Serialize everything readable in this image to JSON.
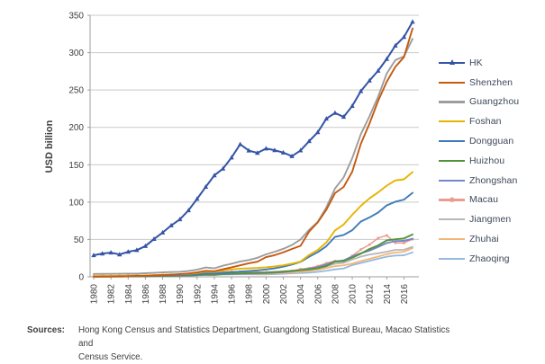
{
  "sources": {
    "label": "Sources:",
    "lines": [
      "Hong Kong Census and Statistics Department, Guangdong Statistical Bureau, Macao Statistics and",
      "Census Service."
    ]
  },
  "chart_data": {
    "type": "line",
    "title": "",
    "xlabel": "",
    "ylabel": "USD billion",
    "ylim": [
      0,
      350
    ],
    "yticks": [
      0,
      50,
      100,
      150,
      200,
      250,
      300,
      350
    ],
    "grid": "horizontal",
    "legend_position": "right",
    "style": {
      "grid_color": "#c9c9c9",
      "axis_color": "#9e9e9e",
      "tick_text_color": "#404040",
      "legend_text_color": "#3c4859"
    },
    "x": [
      1980,
      1981,
      1982,
      1983,
      1984,
      1985,
      1986,
      1987,
      1988,
      1989,
      1990,
      1991,
      1992,
      1993,
      1994,
      1995,
      1996,
      1997,
      1998,
      1999,
      2000,
      2001,
      2002,
      2003,
      2004,
      2005,
      2006,
      2007,
      2008,
      2009,
      2010,
      2011,
      2012,
      2013,
      2014,
      2015,
      2016,
      2017
    ],
    "xtick_labels": [
      "1980",
      "1982",
      "1984",
      "1986",
      "1988",
      "1990",
      "1992",
      "1994",
      "1996",
      "1998",
      "2000",
      "2002",
      "2004",
      "2006",
      "2008",
      "2010",
      "2012",
      "2014",
      "2016"
    ],
    "series": [
      {
        "name": "HK",
        "color": "#3454a5",
        "marker": "triangle",
        "width": 2,
        "values": [
          28.9,
          31.1,
          32.4,
          29.9,
          33.5,
          35.7,
          41.1,
          50.6,
          59.2,
          68.8,
          76.9,
          88.9,
          104.3,
          120.4,
          135.8,
          144.7,
          159.7,
          177.4,
          168.9,
          165.8,
          171.7,
          169.4,
          166.3,
          161.4,
          169.1,
          181.6,
          193.5,
          211.6,
          219.3,
          214.0,
          228.6,
          248.5,
          262.6,
          275.7,
          291.5,
          309.4,
          320.9,
          341.3
        ]
      },
      {
        "name": "Shenzhen",
        "color": "#c55a11",
        "marker": "none",
        "width": 1.9,
        "values": [
          0.2,
          0.3,
          0.4,
          0.6,
          0.8,
          1.3,
          1.4,
          1.8,
          2.3,
          2.8,
          3.6,
          4.4,
          5.9,
          8.0,
          7.5,
          10.1,
          12.7,
          15.4,
          18.1,
          20.2,
          26.4,
          29.0,
          32.8,
          37.3,
          41.5,
          60.6,
          72.9,
          89.8,
          112.0,
          120.3,
          140.7,
          178.0,
          205.0,
          235.4,
          261.0,
          281.0,
          294.0,
          332.4
        ]
      },
      {
        "name": "Guangzhou",
        "color": "#9d9d9d",
        "marker": "none",
        "width": 1.9,
        "values": [
          3.8,
          3.9,
          4.0,
          4.1,
          4.2,
          4.2,
          4.8,
          5.3,
          6.0,
          6.4,
          6.7,
          7.8,
          9.6,
          12.6,
          11.4,
          14.9,
          17.5,
          20.5,
          22.5,
          25.5,
          30.1,
          33.5,
          37.5,
          42.5,
          50.0,
          62.9,
          73.5,
          93.0,
          118.2,
          133.0,
          158.8,
          191.0,
          214.8,
          241.0,
          272.0,
          290.0,
          295.0,
          318.5
        ]
      },
      {
        "name": "Foshan",
        "color": "#e6b400",
        "marker": "none",
        "width": 1.9,
        "values": [
          0.9,
          1.0,
          1.1,
          1.2,
          1.4,
          1.6,
          1.8,
          2.2,
          2.8,
          3.2,
          3.4,
          4.0,
          5.2,
          7.0,
          6.6,
          9.0,
          10.0,
          10.9,
          11.4,
          11.9,
          12.7,
          13.9,
          15.4,
          17.6,
          20.4,
          29.3,
          36.0,
          46.0,
          62.0,
          70.0,
          83.0,
          95.0,
          105.0,
          113.0,
          122.0,
          129.0,
          130.5,
          140.2
        ]
      },
      {
        "name": "Dongguan",
        "color": "#3e7cb9",
        "marker": "none",
        "width": 1.9,
        "values": [
          0.5,
          0.55,
          0.6,
          0.7,
          0.85,
          1.0,
          1.2,
          1.5,
          1.9,
          2.1,
          2.2,
          2.7,
          3.5,
          4.5,
          4.3,
          5.5,
          6.2,
          7.0,
          7.8,
          8.7,
          9.9,
          11.4,
          13.6,
          16.5,
          20.0,
          26.8,
          33.0,
          41.0,
          53.5,
          56.0,
          62.4,
          74.0,
          79.5,
          86.0,
          95.6,
          100.5,
          103.3,
          112.4
        ]
      },
      {
        "name": "Huizhou",
        "color": "#55933b",
        "marker": "none",
        "width": 1.9,
        "values": [
          0.3,
          0.35,
          0.4,
          0.45,
          0.5,
          0.6,
          0.75,
          0.95,
          1.2,
          1.4,
          1.6,
          2.0,
          2.5,
          3.1,
          3.0,
          3.8,
          4.2,
          4.6,
          5.0,
          5.3,
          5.6,
          6.2,
          7.0,
          7.9,
          8.8,
          9.8,
          11.5,
          14.5,
          20.2,
          21.0,
          25.6,
          31.0,
          37.3,
          42.0,
          48.8,
          50.3,
          51.4,
          56.7
        ]
      },
      {
        "name": "Zhongshan",
        "color": "#7486c6",
        "marker": "none",
        "width": 1.9,
        "values": [
          0.3,
          0.33,
          0.38,
          0.45,
          0.52,
          0.6,
          0.7,
          0.9,
          1.1,
          1.3,
          1.4,
          1.7,
          2.2,
          2.8,
          2.7,
          3.5,
          3.8,
          4.1,
          4.4,
          4.6,
          4.9,
          5.5,
          6.3,
          7.5,
          8.9,
          10.9,
          13.0,
          16.5,
          20.5,
          22.0,
          27.3,
          31.5,
          35.0,
          40.0,
          45.2,
          47.8,
          48.1,
          50.9
        ]
      },
      {
        "name": "Macau",
        "color": "#ea9c90",
        "marker": "square",
        "width": 1.5,
        "values": [
          1.1,
          1.2,
          1.25,
          1.3,
          1.4,
          1.3,
          1.6,
          2.1,
          2.6,
          3.0,
          3.2,
          4.0,
          4.9,
          5.5,
          6.3,
          6.8,
          6.9,
          6.8,
          6.2,
          6.0,
          6.1,
          6.2,
          6.8,
          8.0,
          10.4,
          11.6,
          14.3,
          18.3,
          21.2,
          21.3,
          28.1,
          36.6,
          43.0,
          51.8,
          55.4,
          45.4,
          45.3,
          50.4
        ]
      },
      {
        "name": "Jiangmen",
        "color": "#b7b7b7",
        "marker": "none",
        "width": 1.8,
        "values": [
          0.6,
          0.65,
          0.7,
          0.8,
          0.9,
          1.0,
          1.2,
          1.5,
          1.8,
          1.9,
          2.0,
          2.4,
          3.0,
          3.8,
          3.6,
          5.0,
          5.4,
          5.8,
          6.0,
          6.1,
          6.3,
          6.8,
          7.4,
          8.1,
          8.9,
          9.8,
          11.3,
          14.0,
          17.5,
          18.6,
          23.1,
          27.0,
          29.8,
          31.5,
          33.5,
          36.1,
          36.2,
          40.1
        ]
      },
      {
        "name": "Zhuhai",
        "color": "#f4b678",
        "marker": "none",
        "width": 1.8,
        "values": [
          0.2,
          0.25,
          0.3,
          0.4,
          0.45,
          0.5,
          0.65,
          0.85,
          1.05,
          1.2,
          1.3,
          1.6,
          2.1,
          2.7,
          2.6,
          3.4,
          3.6,
          3.8,
          3.9,
          3.9,
          4.0,
          4.5,
          5.1,
          5.9,
          6.7,
          7.8,
          9.4,
          11.7,
          14.3,
          15.3,
          17.8,
          21.0,
          24.1,
          27.1,
          30.3,
          32.5,
          33.5,
          38.5
        ]
      },
      {
        "name": "Zhaoqing",
        "color": "#93b9df",
        "marker": "none",
        "width": 1.8,
        "values": [
          0.4,
          0.45,
          0.5,
          0.55,
          0.6,
          0.7,
          0.85,
          1.0,
          1.2,
          1.3,
          1.4,
          1.7,
          2.1,
          2.6,
          2.5,
          3.1,
          3.2,
          3.3,
          3.3,
          3.2,
          3.2,
          3.6,
          4.1,
          4.7,
          5.1,
          5.6,
          6.6,
          8.1,
          10.0,
          11.1,
          15.7,
          18.5,
          21.4,
          24.2,
          26.9,
          28.4,
          28.8,
          32.7
        ]
      }
    ]
  }
}
